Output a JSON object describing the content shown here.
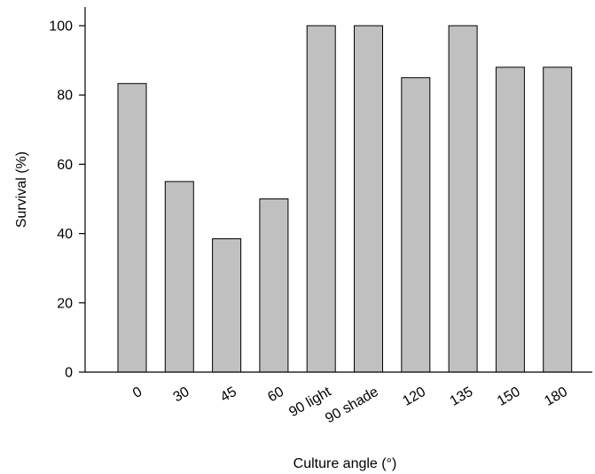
{
  "chart_data": {
    "type": "bar",
    "categories": [
      "0",
      "30",
      "45",
      "60",
      "90 light",
      "90 shade",
      "120",
      "135",
      "150",
      "180"
    ],
    "values": [
      83.3,
      55,
      38.5,
      50,
      100,
      100,
      85,
      100,
      88,
      88
    ],
    "xlabel": "Culture angle (°)",
    "ylabel": "Survival (%)",
    "ylim": [
      0,
      100
    ],
    "yticks": [
      0,
      20,
      40,
      60,
      80,
      100
    ],
    "grid": false,
    "legend": "none",
    "bar_color": "#c0c0c0",
    "bar_edge_color": "#000000"
  }
}
